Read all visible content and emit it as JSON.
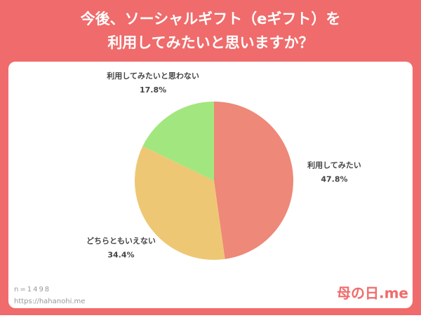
{
  "chart_data": {
    "type": "pie",
    "title": [
      "今後、ソーシャルギフト（eギフト）を",
      "利用してみたいと思いますか？"
    ],
    "categories": [
      "利用してみたい",
      "どちらともいえない",
      "利用してみたいと思わない"
    ],
    "values": [
      47.8,
      34.4,
      17.8
    ],
    "value_labels": [
      "47.8%",
      "34.4%",
      "17.8%"
    ],
    "colors": [
      "#ee8878",
      "#eec774",
      "#a2e67f"
    ]
  },
  "footer": {
    "note": "n=1498",
    "url": "https://hahanohi.me",
    "logo": "母の日.me"
  }
}
